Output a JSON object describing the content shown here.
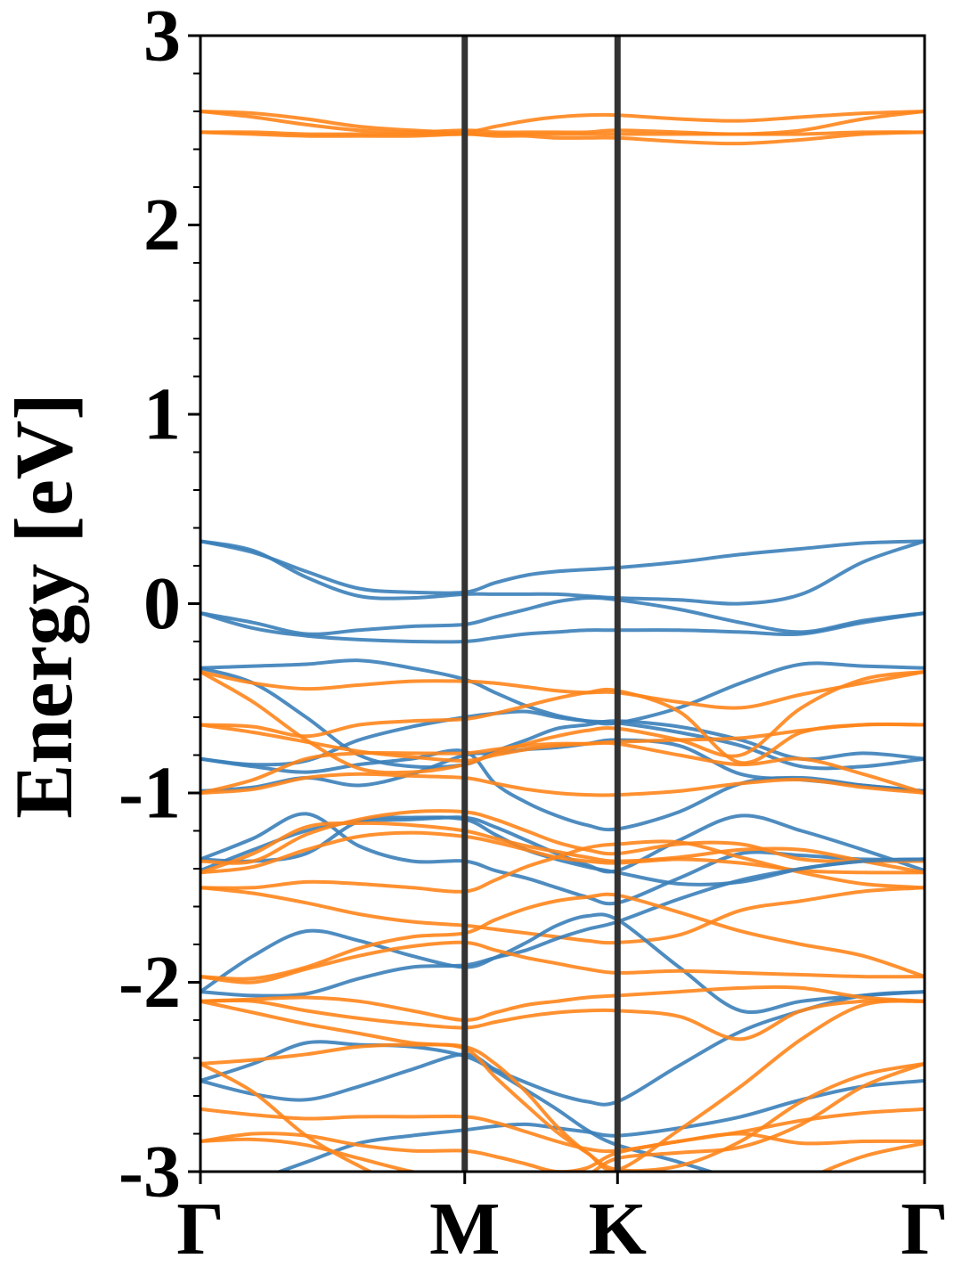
{
  "chart_data": {
    "type": "line",
    "ylabel": "Energy [eV]",
    "ylim": [
      -3,
      3
    ],
    "yticks": [
      "-3",
      "-2",
      "-1",
      "0",
      "1",
      "2",
      "3"
    ],
    "xticks": [
      {
        "label": "Γ",
        "x": 0
      },
      {
        "label": "M",
        "x": 0.365
      },
      {
        "label": "K",
        "x": 0.576
      },
      {
        "label": "Γ",
        "x": 1
      }
    ],
    "high_symmetry_lines": [
      0.365,
      0.576
    ],
    "x": [
      0,
      0.073,
      0.146,
      0.219,
      0.292,
      0.365,
      0.407,
      0.45,
      0.492,
      0.534,
      0.576,
      0.661,
      0.746,
      0.83,
      0.915,
      1
    ],
    "colors": {
      "blue": "#3b80b9",
      "orange": "#ff851b",
      "vline": "#333333"
    },
    "series": [
      {
        "color": "blue",
        "values": [
          0.33,
          0.27,
          0.17,
          0.08,
          0.06,
          0.06,
          0.11,
          0.15,
          0.17,
          0.18,
          0.19,
          0.22,
          0.26,
          0.29,
          0.32,
          0.33
        ]
      },
      {
        "color": "blue",
        "values": [
          0.33,
          0.28,
          0.14,
          0.04,
          0.03,
          0.05,
          0.05,
          0.05,
          0.05,
          0.04,
          0.03,
          0.02,
          0.0,
          0.05,
          0.22,
          0.33
        ]
      },
      {
        "color": "blue",
        "values": [
          -0.05,
          -0.1,
          -0.16,
          -0.14,
          -0.12,
          -0.11,
          -0.07,
          -0.03,
          0.01,
          0.03,
          0.02,
          -0.03,
          -0.1,
          -0.15,
          -0.09,
          -0.05
        ]
      },
      {
        "color": "blue",
        "values": [
          -0.05,
          -0.13,
          -0.17,
          -0.19,
          -0.2,
          -0.2,
          -0.18,
          -0.16,
          -0.15,
          -0.14,
          -0.14,
          -0.14,
          -0.15,
          -0.16,
          -0.1,
          -0.05
        ]
      },
      {
        "color": "orange",
        "values": [
          2.6,
          2.59,
          2.56,
          2.52,
          2.5,
          2.49,
          2.52,
          2.55,
          2.57,
          2.58,
          2.58,
          2.56,
          2.55,
          2.57,
          2.59,
          2.6
        ]
      },
      {
        "color": "orange",
        "values": [
          2.6,
          2.57,
          2.53,
          2.5,
          2.49,
          2.5,
          2.49,
          2.49,
          2.49,
          2.49,
          2.5,
          2.49,
          2.48,
          2.5,
          2.56,
          2.6
        ]
      },
      {
        "color": "orange",
        "values": [
          2.49,
          2.48,
          2.47,
          2.47,
          2.47,
          2.48,
          2.47,
          2.47,
          2.46,
          2.46,
          2.46,
          2.44,
          2.43,
          2.45,
          2.48,
          2.49
        ]
      },
      {
        "color": "orange",
        "values": [
          2.49,
          2.49,
          2.48,
          2.48,
          2.48,
          2.48,
          2.48,
          2.48,
          2.48,
          2.48,
          2.48,
          2.48,
          2.48,
          2.48,
          2.49,
          2.49
        ]
      },
      {
        "color": "blue",
        "values": [
          -0.34,
          -0.33,
          -0.32,
          -0.3,
          -0.34,
          -0.4,
          -0.47,
          -0.54,
          -0.59,
          -0.62,
          -0.63,
          -0.55,
          -0.42,
          -0.32,
          -0.33,
          -0.34
        ]
      },
      {
        "color": "blue",
        "values": [
          -0.34,
          -0.42,
          -0.6,
          -0.8,
          -0.86,
          -0.85,
          -0.78,
          -0.72,
          -0.66,
          -0.64,
          -0.62,
          -0.65,
          -0.72,
          -0.82,
          -0.79,
          -0.82
        ]
      },
      {
        "color": "blue",
        "values": [
          -0.82,
          -0.85,
          -0.83,
          -0.72,
          -0.65,
          -0.6,
          -0.58,
          -0.57,
          -0.6,
          -0.62,
          -0.63,
          -0.68,
          -0.75,
          -0.86,
          -0.86,
          -0.82
        ]
      },
      {
        "color": "blue",
        "values": [
          -0.99,
          -0.97,
          -0.92,
          -0.96,
          -0.9,
          -0.8,
          -0.79,
          -0.77,
          -0.76,
          -0.74,
          -0.72,
          -0.75,
          -0.9,
          -0.93,
          -0.96,
          -0.99
        ]
      },
      {
        "color": "blue",
        "values": [
          -0.82,
          -0.86,
          -0.89,
          -0.85,
          -0.82,
          -0.78,
          -0.95,
          -1.05,
          -1.12,
          -1.17,
          -1.19,
          -1.1,
          -0.95,
          -0.92,
          -0.96,
          -0.99
        ]
      },
      {
        "color": "orange",
        "values": [
          -0.36,
          -0.42,
          -0.45,
          -0.43,
          -0.41,
          -0.41,
          -0.42,
          -0.44,
          -0.46,
          -0.47,
          -0.47,
          -0.52,
          -0.55,
          -0.48,
          -0.42,
          -0.36
        ]
      },
      {
        "color": "orange",
        "values": [
          -0.36,
          -0.52,
          -0.72,
          -0.87,
          -0.89,
          -0.85,
          -0.79,
          -0.74,
          -0.7,
          -0.67,
          -0.66,
          -0.72,
          -0.8,
          -0.55,
          -0.4,
          -0.36
        ]
      },
      {
        "color": "orange",
        "values": [
          -0.64,
          -0.65,
          -0.7,
          -0.64,
          -0.62,
          -0.61,
          -0.58,
          -0.54,
          -0.5,
          -0.47,
          -0.46,
          -0.57,
          -0.84,
          -0.68,
          -0.64,
          -0.64
        ]
      },
      {
        "color": "orange",
        "values": [
          -0.64,
          -0.68,
          -0.73,
          -0.78,
          -0.81,
          -0.83,
          -0.8,
          -0.77,
          -0.75,
          -0.74,
          -0.73,
          -0.72,
          -0.71,
          -0.67,
          -0.64,
          -0.64
        ]
      },
      {
        "color": "orange",
        "values": [
          -1.0,
          -0.93,
          -0.82,
          -0.79,
          -0.79,
          -0.79,
          -0.77,
          -0.75,
          -0.74,
          -0.74,
          -0.74,
          -0.8,
          -0.85,
          -0.82,
          -0.9,
          -1.0
        ]
      },
      {
        "color": "orange",
        "values": [
          -1.0,
          -0.98,
          -0.92,
          -0.9,
          -0.91,
          -0.92,
          -0.95,
          -0.98,
          -1.0,
          -1.01,
          -1.01,
          -0.99,
          -0.95,
          -0.93,
          -0.97,
          -1.0
        ]
      },
      {
        "color": "blue",
        "values": [
          -1.35,
          -1.24,
          -1.11,
          -1.28,
          -1.36,
          -1.36,
          -1.41,
          -1.45,
          -1.5,
          -1.55,
          -1.58,
          -1.45,
          -1.32,
          -1.33,
          -1.35,
          -1.35
        ]
      },
      {
        "color": "blue",
        "values": [
          -1.41,
          -1.3,
          -1.2,
          -1.15,
          -1.14,
          -1.13,
          -1.18,
          -1.25,
          -1.32,
          -1.38,
          -1.41,
          -1.25,
          -1.12,
          -1.2,
          -1.3,
          -1.41
        ]
      },
      {
        "color": "blue",
        "values": [
          -1.35,
          -1.36,
          -1.32,
          -1.15,
          -1.13,
          -1.14,
          -1.22,
          -1.3,
          -1.35,
          -1.39,
          -1.42,
          -1.48,
          -1.47,
          -1.4,
          -1.36,
          -1.35
        ]
      },
      {
        "color": "orange",
        "values": [
          -1.36,
          -1.36,
          -1.22,
          -1.14,
          -1.1,
          -1.1,
          -1.14,
          -1.2,
          -1.26,
          -1.3,
          -1.32,
          -1.27,
          -1.27,
          -1.35,
          -1.36,
          -1.36
        ]
      },
      {
        "color": "orange",
        "values": [
          -1.42,
          -1.32,
          -1.18,
          -1.16,
          -1.17,
          -1.2,
          -1.24,
          -1.28,
          -1.31,
          -1.34,
          -1.36,
          -1.34,
          -1.3,
          -1.3,
          -1.36,
          -1.42
        ]
      },
      {
        "color": "orange",
        "values": [
          -1.42,
          -1.39,
          -1.3,
          -1.23,
          -1.21,
          -1.23,
          -1.26,
          -1.3,
          -1.34,
          -1.36,
          -1.37,
          -1.35,
          -1.37,
          -1.41,
          -1.42,
          -1.42
        ]
      },
      {
        "color": "orange",
        "values": [
          -1.5,
          -1.5,
          -1.47,
          -1.48,
          -1.5,
          -1.52,
          -1.46,
          -1.39,
          -1.34,
          -1.29,
          -1.27,
          -1.26,
          -1.34,
          -1.42,
          -1.48,
          -1.5
        ]
      },
      {
        "color": "orange",
        "values": [
          -1.5,
          -1.53,
          -1.58,
          -1.64,
          -1.68,
          -1.7,
          -1.72,
          -1.74,
          -1.76,
          -1.78,
          -1.79,
          -1.75,
          -1.62,
          -1.57,
          -1.52,
          -1.5
        ]
      },
      {
        "color": "blue",
        "values": [
          -2.05,
          -1.86,
          -1.73,
          -1.78,
          -1.86,
          -1.92,
          -1.87,
          -1.79,
          -1.7,
          -1.65,
          -1.67,
          -1.92,
          -2.15,
          -2.1,
          -2.07,
          -2.05
        ]
      },
      {
        "color": "blue",
        "values": [
          -2.05,
          -2.07,
          -2.06,
          -1.98,
          -1.92,
          -1.91,
          -1.87,
          -1.83,
          -1.77,
          -1.72,
          -1.68,
          -1.56,
          -1.46,
          -1.4,
          -1.36,
          -1.35
        ]
      },
      {
        "color": "blue",
        "values": [
          -2.52,
          -2.43,
          -2.32,
          -2.33,
          -2.34,
          -2.39,
          -2.47,
          -2.57,
          -2.67,
          -2.78,
          -2.86,
          -2.95,
          -3.05,
          -3.15,
          -3.25,
          -3.35
        ]
      },
      {
        "color": "blue",
        "values": [
          -2.52,
          -2.59,
          -2.62,
          -2.55,
          -2.46,
          -2.38,
          -2.46,
          -2.53,
          -2.59,
          -2.63,
          -2.63,
          -2.44,
          -2.26,
          -2.15,
          -2.07,
          -2.05
        ]
      },
      {
        "color": "blue",
        "values": [
          -3.15,
          -3.05,
          -2.95,
          -2.85,
          -2.81,
          -2.78,
          -2.76,
          -2.75,
          -2.77,
          -2.79,
          -2.81,
          -2.77,
          -2.71,
          -2.62,
          -2.55,
          -2.52
        ]
      },
      {
        "color": "orange",
        "values": [
          -1.97,
          -1.98,
          -1.92,
          -1.82,
          -1.76,
          -1.74,
          -1.67,
          -1.61,
          -1.57,
          -1.55,
          -1.54,
          -1.63,
          -1.73,
          -1.8,
          -1.86,
          -1.97
        ]
      },
      {
        "color": "orange",
        "values": [
          -1.97,
          -2.0,
          -1.93,
          -1.86,
          -1.81,
          -1.79,
          -1.83,
          -1.87,
          -1.9,
          -1.93,
          -1.95,
          -1.94,
          -1.95,
          -1.96,
          -1.97,
          -1.97
        ]
      },
      {
        "color": "orange",
        "values": [
          -2.1,
          -2.09,
          -2.08,
          -2.1,
          -2.15,
          -2.2,
          -2.16,
          -2.12,
          -2.1,
          -2.08,
          -2.07,
          -2.05,
          -2.03,
          -2.03,
          -2.08,
          -2.1
        ]
      },
      {
        "color": "orange",
        "values": [
          -2.1,
          -2.1,
          -2.15,
          -2.19,
          -2.22,
          -2.24,
          -2.21,
          -2.18,
          -2.16,
          -2.15,
          -2.15,
          -2.18,
          -2.3,
          -2.15,
          -2.1,
          -2.1
        ]
      },
      {
        "color": "orange",
        "values": [
          -2.1,
          -2.16,
          -2.22,
          -2.27,
          -2.32,
          -2.35,
          -2.5,
          -2.65,
          -2.79,
          -2.9,
          -2.99,
          -2.78,
          -2.55,
          -2.3,
          -2.12,
          -2.1
        ]
      },
      {
        "color": "orange",
        "values": [
          -2.43,
          -2.41,
          -2.38,
          -2.34,
          -2.33,
          -2.34,
          -2.43,
          -2.58,
          -2.76,
          -2.9,
          -2.99,
          -2.97,
          -2.84,
          -2.63,
          -2.49,
          -2.43
        ]
      },
      {
        "color": "orange",
        "values": [
          -2.43,
          -2.58,
          -2.81,
          -2.97,
          -3.1,
          -3.2,
          -3.25,
          -3.3,
          -3.35,
          -3.38,
          -3.4,
          -3.35,
          -3.2,
          -3.05,
          -2.92,
          -2.85
        ]
      },
      {
        "color": "orange",
        "values": [
          -2.67,
          -2.7,
          -2.72,
          -2.71,
          -2.71,
          -2.71,
          -2.74,
          -2.79,
          -2.84,
          -2.88,
          -2.89,
          -2.84,
          -2.79,
          -2.73,
          -2.69,
          -2.67
        ]
      },
      {
        "color": "orange",
        "values": [
          -2.84,
          -2.8,
          -2.81,
          -2.86,
          -2.89,
          -2.89,
          -2.92,
          -2.96,
          -3.0,
          -2.98,
          -2.9,
          -2.84,
          -2.8,
          -2.85,
          -2.84,
          -2.84
        ]
      },
      {
        "color": "orange",
        "values": [
          -2.84,
          -2.83,
          -2.86,
          -2.93,
          -3.0,
          -3.05,
          -3.08,
          -3.1,
          -3.08,
          -3.02,
          -2.93,
          -2.9,
          -2.87,
          -2.75,
          -2.55,
          -2.43
        ]
      }
    ]
  }
}
